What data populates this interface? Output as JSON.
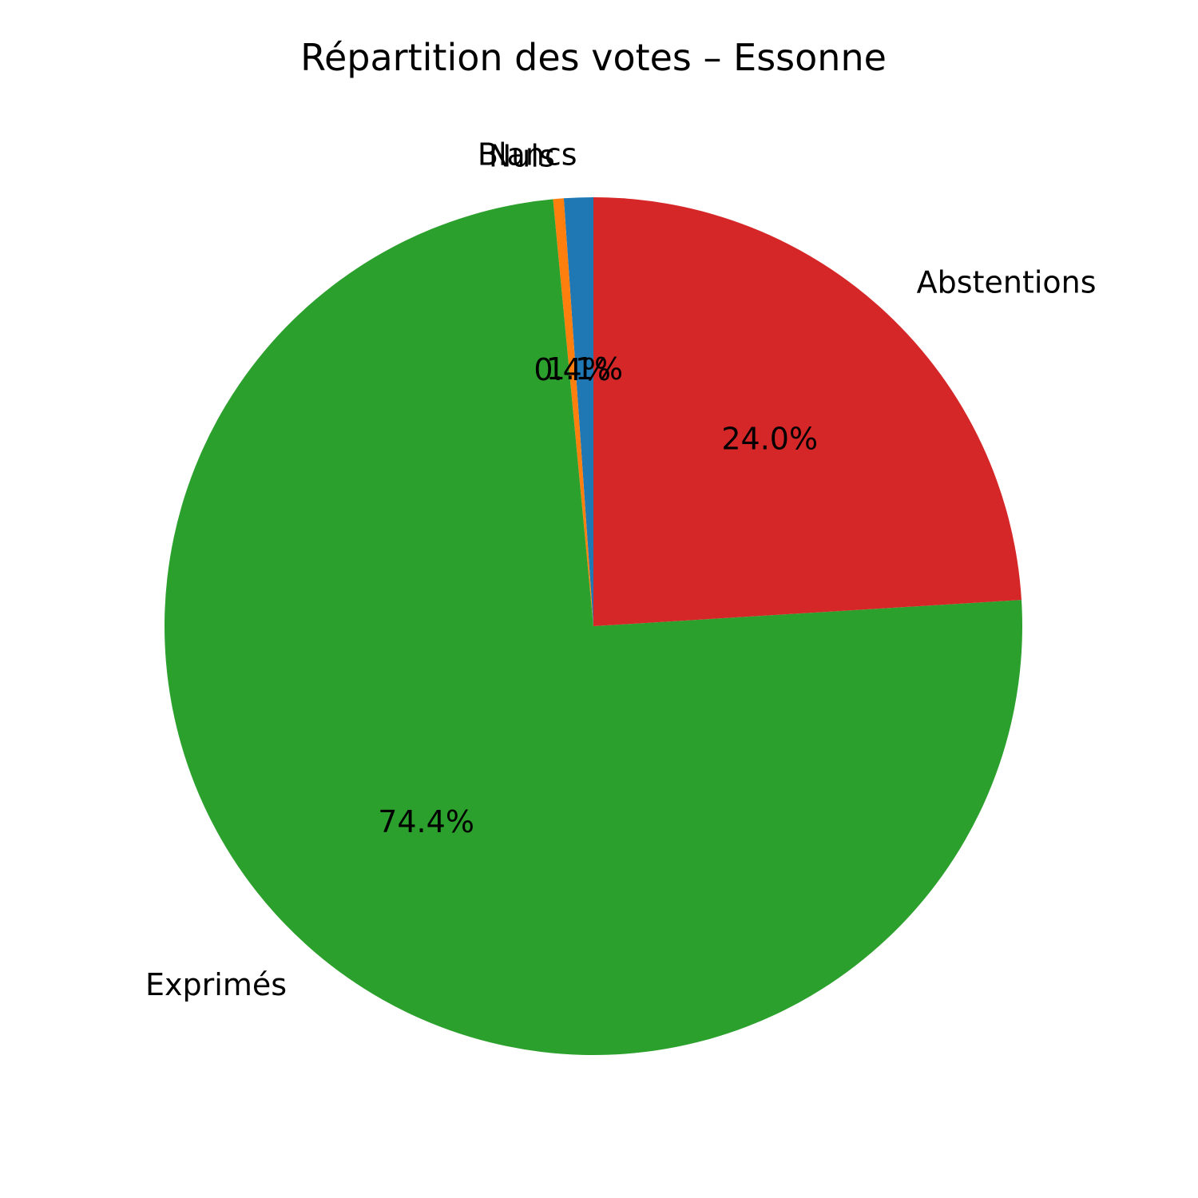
{
  "chart_data": {
    "type": "pie",
    "title": "Répartition des votes – Essonne",
    "counterclock": true,
    "start_angle_deg": 90,
    "slices": [
      {
        "label": "Blancs",
        "value": 1.1,
        "pct_label": "1.1%",
        "color": "#1f77b4"
      },
      {
        "label": "Nuls",
        "value": 0.4,
        "pct_label": "0.4%",
        "color": "#ff7f0e"
      },
      {
        "label": "Exprimés",
        "value": 74.4,
        "pct_label": "74.4%",
        "color": "#2ca02c"
      },
      {
        "label": "Abstentions",
        "value": 24.0,
        "pct_label": "24.0%",
        "color": "#d62728"
      }
    ]
  }
}
